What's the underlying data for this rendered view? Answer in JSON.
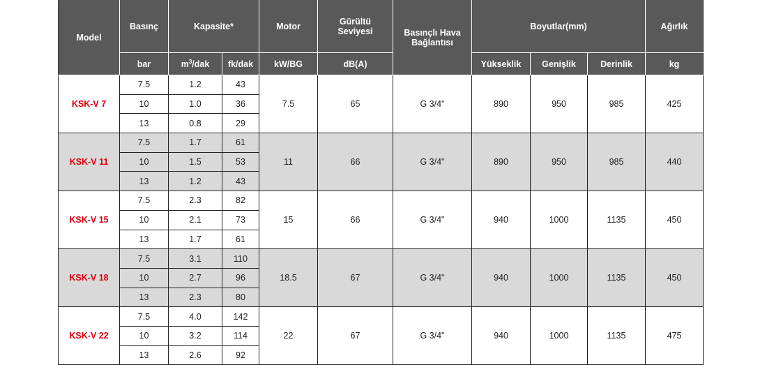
{
  "header": {
    "model": "Model",
    "pressure": "Basınç",
    "capacity": "Kapasite*",
    "motor": "Motor",
    "noise": "Gürültü Seviyesi",
    "air_connection": "Basınçlı Hava Bağlantısı",
    "dimensions": "Boyutlar(mm)",
    "weight": "Ağırlık",
    "unit_bar": "bar",
    "unit_m3_base": "m",
    "unit_m3_sup": "3",
    "unit_m3_rest": "/dak",
    "unit_cfm": "fk/dak",
    "unit_motor": "kW/BG",
    "unit_noise": "dB(A)",
    "height": "Yükseklik",
    "width": "Genişlik",
    "depth": "Derinlik",
    "unit_weight": "kg"
  },
  "colors": {
    "header_bg": "#595959",
    "model_text": "#e0000f",
    "alt_row_bg": "#d9d9d9"
  },
  "models": [
    {
      "name": "KSK-V 7",
      "shaded": false,
      "motor": "7.5",
      "noise": "65",
      "connection": "G 3/4\"",
      "height": "890",
      "width": "950",
      "depth": "985",
      "weight": "425",
      "rows": [
        [
          "7.5",
          "1.2",
          "43"
        ],
        [
          "10",
          "1.0",
          "36"
        ],
        [
          "13",
          "0.8",
          "29"
        ]
      ]
    },
    {
      "name": "KSK-V 11",
      "shaded": true,
      "motor": "11",
      "noise": "66",
      "connection": "G 3/4\"",
      "height": "890",
      "width": "950",
      "depth": "985",
      "weight": "440",
      "rows": [
        [
          "7.5",
          "1.7",
          "61"
        ],
        [
          "10",
          "1.5",
          "53"
        ],
        [
          "13",
          "1.2",
          "43"
        ]
      ]
    },
    {
      "name": "KSK-V 15",
      "shaded": false,
      "motor": "15",
      "noise": "66",
      "connection": "G 3/4\"",
      "height": "940",
      "width": "1000",
      "depth": "1135",
      "weight": "450",
      "rows": [
        [
          "7.5",
          "2.3",
          "82"
        ],
        [
          "10",
          "2.1",
          "73"
        ],
        [
          "13",
          "1.7",
          "61"
        ]
      ]
    },
    {
      "name": "KSK-V 18",
      "shaded": true,
      "motor": "18.5",
      "noise": "67",
      "connection": "G 3/4\"",
      "height": "940",
      "width": "1000",
      "depth": "1135",
      "weight": "450",
      "rows": [
        [
          "7.5",
          "3.1",
          "110"
        ],
        [
          "10",
          "2.7",
          "96"
        ],
        [
          "13",
          "2.3",
          "80"
        ]
      ]
    },
    {
      "name": "KSK-V 22",
      "shaded": false,
      "motor": "22",
      "noise": "67",
      "connection": "G 3/4\"",
      "height": "940",
      "width": "1000",
      "depth": "1135",
      "weight": "475",
      "rows": [
        [
          "7.5",
          "4.0",
          "142"
        ],
        [
          "10",
          "3.2",
          "114"
        ],
        [
          "13",
          "2.6",
          "92"
        ]
      ]
    }
  ]
}
